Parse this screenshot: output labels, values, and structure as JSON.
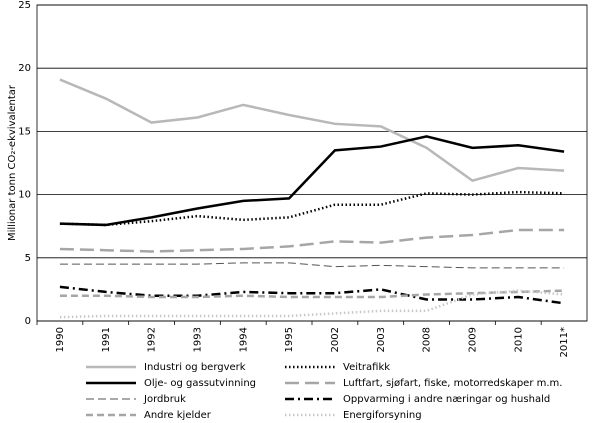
{
  "chart_data": {
    "type": "line",
    "ylabel": "Millionar tonn CO₂-ekvivalentar",
    "categories": [
      "1990",
      "1991",
      "1992",
      "1993",
      "1994",
      "1995",
      "2002",
      "2003",
      "2008",
      "2009",
      "2010",
      "2011*"
    ],
    "ylim": [
      0,
      25
    ],
    "yticks": [
      0,
      5,
      10,
      15,
      20,
      25
    ],
    "grid": true,
    "series": [
      {
        "name": "Industri og bergverk",
        "color": "#b8b8b8",
        "style": "solid",
        "width": 2.5,
        "values": [
          19.1,
          17.6,
          15.7,
          16.1,
          17.1,
          16.3,
          15.6,
          15.4,
          13.7,
          11.1,
          12.1,
          11.9
        ]
      },
      {
        "name": "Veitrafikk",
        "color": "#000000",
        "style": "dotted",
        "width": 2.5,
        "values": [
          7.7,
          7.6,
          7.9,
          8.3,
          8.0,
          8.2,
          9.2,
          9.2,
          10.1,
          10.0,
          10.2,
          10.1
        ]
      },
      {
        "name": "Olje- og gassutvinning",
        "color": "#000000",
        "style": "solid",
        "width": 2.5,
        "values": [
          7.7,
          7.6,
          8.2,
          8.9,
          9.5,
          9.7,
          13.5,
          13.8,
          14.6,
          13.7,
          13.9,
          13.4
        ]
      },
      {
        "name": "Luftfart, sjøfart, fiske, motorredskaper m.m.",
        "color": "#a6a6a6",
        "style": "longdash",
        "width": 2.5,
        "values": [
          5.7,
          5.6,
          5.5,
          5.6,
          5.7,
          5.9,
          6.3,
          6.2,
          6.6,
          6.8,
          7.2,
          7.2
        ]
      },
      {
        "name": "Jordbruk",
        "color": "#555555",
        "style": "dashed",
        "width": 1,
        "values": [
          4.5,
          4.5,
          4.5,
          4.5,
          4.6,
          4.6,
          4.3,
          4.4,
          4.3,
          4.2,
          4.2,
          4.2
        ]
      },
      {
        "name": "Oppvarming i andre næringar og hushald",
        "color": "#000000",
        "style": "dashdot",
        "width": 2.5,
        "values": [
          2.7,
          2.3,
          2.0,
          2.0,
          2.3,
          2.2,
          2.2,
          2.5,
          1.7,
          1.7,
          1.9,
          1.4
        ]
      },
      {
        "name": "Andre kjelder",
        "color": "#a6a6a6",
        "style": "dashed",
        "width": 2.5,
        "values": [
          2.0,
          2.0,
          1.9,
          1.9,
          2.0,
          1.9,
          1.9,
          1.9,
          2.1,
          2.2,
          2.3,
          2.4
        ]
      },
      {
        "name": "Energiforsyning",
        "color": "#c8c8c8",
        "style": "dotted",
        "width": 2.5,
        "values": [
          0.3,
          0.4,
          0.4,
          0.4,
          0.4,
          0.4,
          0.6,
          0.8,
          0.8,
          2.1,
          2.4,
          2.1
        ]
      }
    ]
  }
}
